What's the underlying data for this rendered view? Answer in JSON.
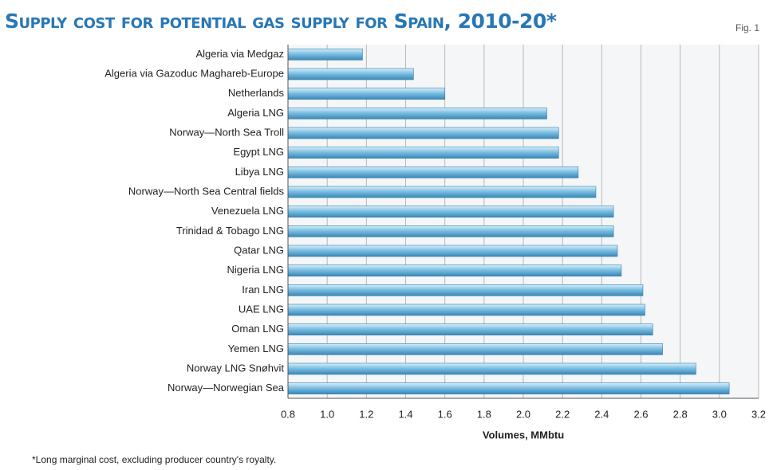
{
  "chart_data": {
    "type": "bar",
    "orientation": "horizontal",
    "title": "Supply cost for potential gas supply for Spain, 2010-20*",
    "figure_label": "Fig. 1",
    "x_label": "Volumes, MMbtu",
    "footnote": "*Long marginal cost, excluding producer country's royalty.",
    "categories": [
      "Algeria via Medgaz",
      "Algeria via Gazoduc Maghareb-Europe",
      "Netherlands",
      "Algeria LNG",
      "Norway—North Sea Troll",
      "Egypt LNG",
      "Libya LNG",
      "Norway—North Sea Central fields",
      "Venezuela LNG",
      "Trinidad & Tobago LNG",
      "Qatar LNG",
      "Nigeria LNG",
      "Iran LNG",
      "UAE LNG",
      "Oman LNG",
      "Yemen LNG",
      "Norway LNG Snøhvit",
      "Norway—Norwegian Sea"
    ],
    "values": [
      1.18,
      1.44,
      1.6,
      2.12,
      2.18,
      2.18,
      2.28,
      2.37,
      2.46,
      2.46,
      2.48,
      2.5,
      2.61,
      2.62,
      2.66,
      2.71,
      2.88,
      3.05
    ],
    "color": "#4a9cc9",
    "xlim": [
      0.8,
      3.2
    ],
    "xticks": [
      0.8,
      {
        "value": 1,
        "label": "1.0"
      },
      1.2,
      1.4,
      1.6,
      1.8,
      {
        "value": 2,
        "label": "2.0"
      },
      2.2,
      2.4,
      2.6,
      2.8,
      {
        "value": 3,
        "label": "3.0"
      },
      3.2
    ],
    "grid": true
  }
}
